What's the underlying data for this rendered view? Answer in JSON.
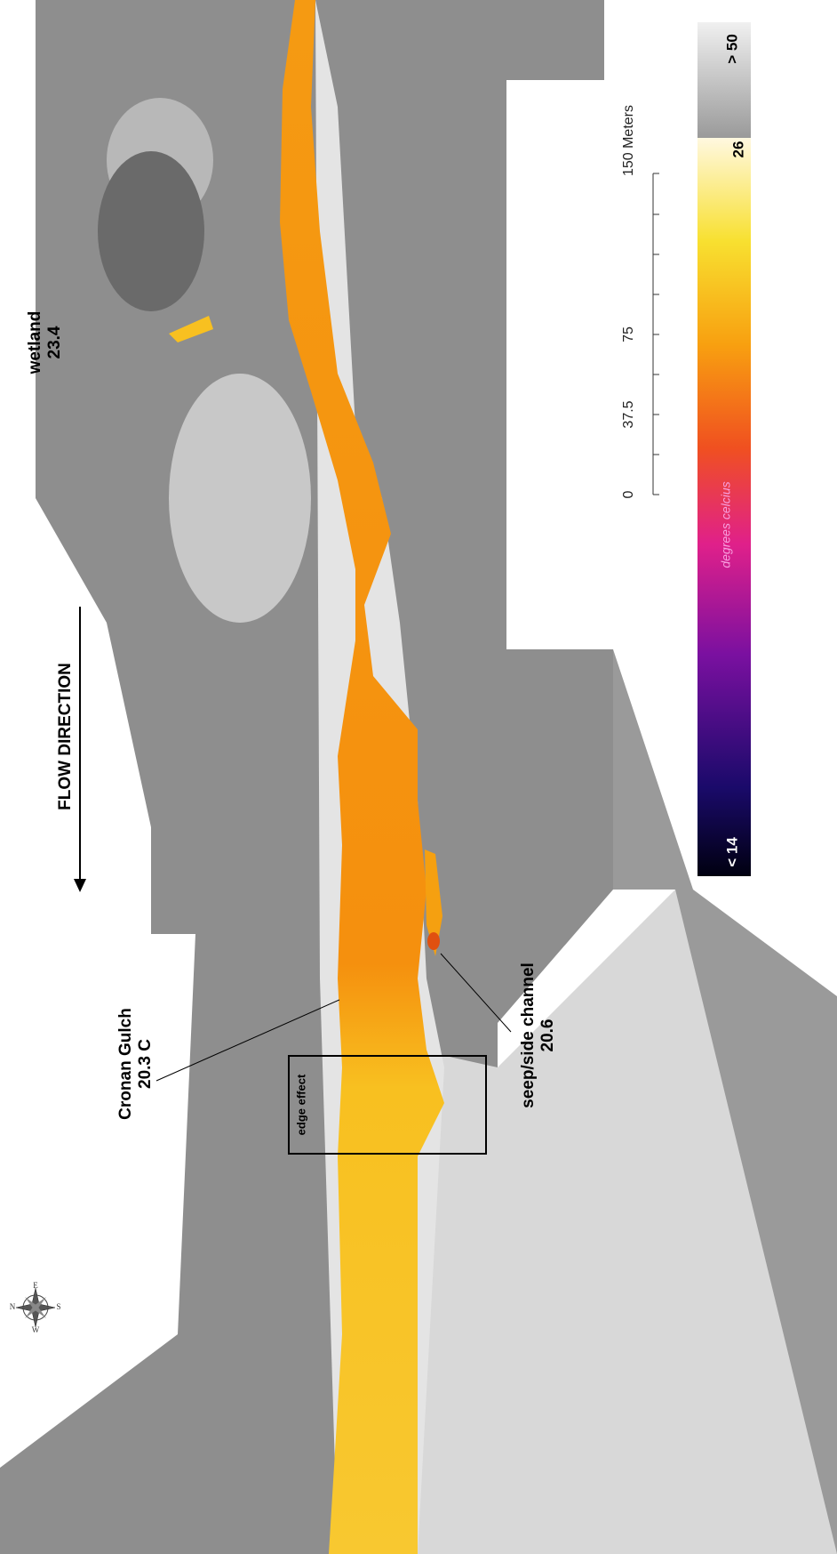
{
  "labels": {
    "wetland": {
      "name": "wetland",
      "temp": "23.4"
    },
    "flow": "FLOW DIRECTION",
    "cronan": {
      "name": "Cronan Gulch",
      "temp": "20.3 C"
    },
    "edge": "edge effect",
    "seep": {
      "name": "seep/side channel",
      "temp": "20.6"
    }
  },
  "scale_bar": {
    "ticks": [
      "0",
      "37.5",
      "75",
      "150 Meters"
    ]
  },
  "legend": {
    "max": "> 50",
    "mid": "26",
    "min": "< 14",
    "unit": "degrees celcius"
  },
  "compass": {
    "n": "N",
    "e": "E",
    "s": "S",
    "w": "W"
  }
}
